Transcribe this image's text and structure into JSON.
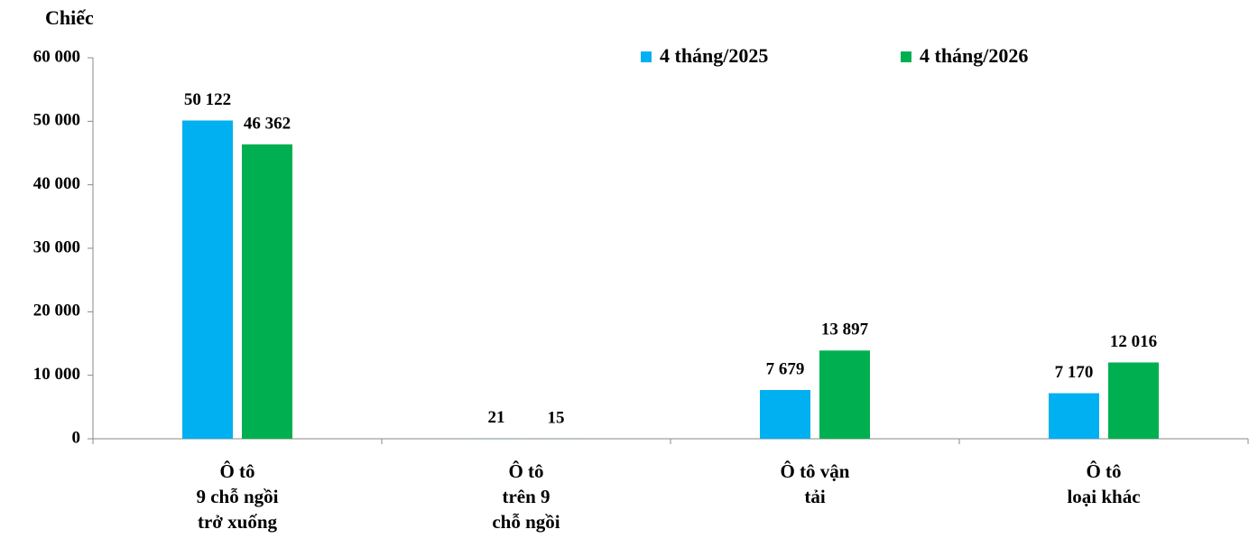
{
  "chart_data": {
    "type": "bar",
    "y_axis_label": "Chiếc",
    "categories": [
      [
        "Ô tô",
        "9 chỗ ngồi",
        "trở xuống"
      ],
      [
        "Ô tô",
        "trên 9",
        "chỗ ngồi"
      ],
      [
        "Ô tô vận",
        "tải"
      ],
      [
        "Ô tô",
        "loại khác"
      ]
    ],
    "series": [
      {
        "name": "4 tháng/2025",
        "color": "#00b0f0",
        "values": [
          50122,
          21,
          7679,
          7170
        ],
        "value_labels": [
          "50 122",
          "21",
          "7 679",
          "7 170"
        ]
      },
      {
        "name": "4 tháng/2026",
        "color": "#00b050",
        "values": [
          46362,
          15,
          13897,
          12016
        ],
        "value_labels": [
          "46 362",
          "15",
          "13 897",
          "12 016"
        ]
      }
    ],
    "ylim": [
      0,
      60000
    ],
    "yticks": [
      0,
      {
        "value": 10000,
        "label": "10 000"
      },
      {
        "value": 20000,
        "label": "20 000"
      },
      {
        "value": 30000,
        "label": "30 000"
      },
      {
        "value": 40000,
        "label": "40 000"
      },
      {
        "value": 50000,
        "label": "50 000"
      },
      {
        "value": 60000,
        "label": "60 000"
      }
    ],
    "grid": false
  }
}
